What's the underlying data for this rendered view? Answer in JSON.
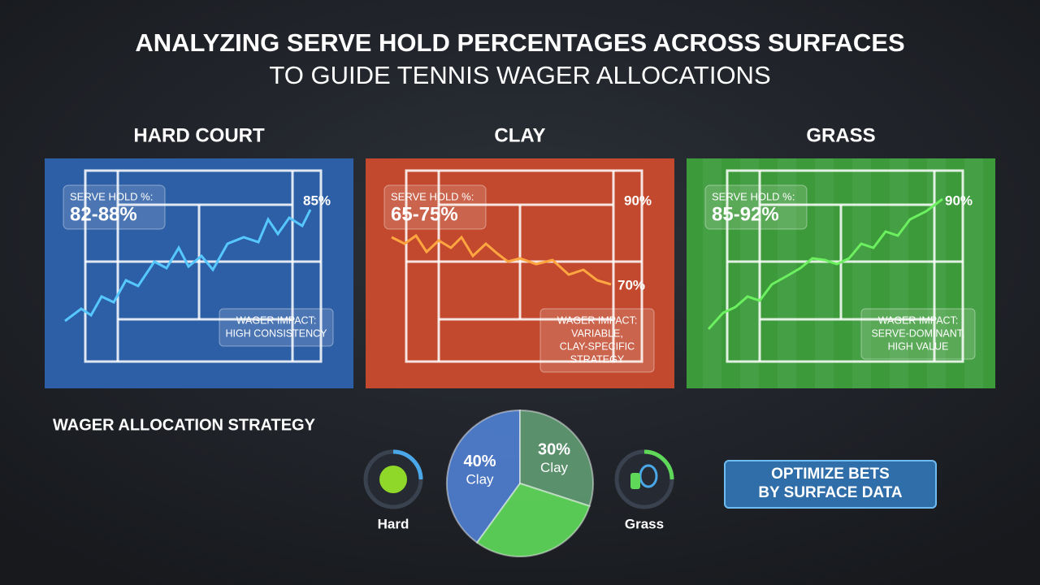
{
  "header": {
    "title_lines": [
      "ANALYZING SERVE HOLD PERCENTAGES ACROSS SURFACES",
      "TO GUIDE TENNIS WAGER ALLOCATIONS"
    ]
  },
  "panels": [
    {
      "heading": "HARD COURT",
      "hold_label": "SERVE HOLD %:",
      "hold_range": "82-88%",
      "markers": [
        "85%"
      ],
      "impact": [
        "WAGER IMPACT:",
        "HIGH CONSISTENCY"
      ]
    },
    {
      "heading": "CLAY",
      "hold_label": "SERVE HOLD %:",
      "hold_range": "65-75%",
      "markers": [
        "90%",
        "70%"
      ],
      "impact": [
        "WAGER IMPACT:",
        "VARIABLE,",
        "CLAY-SPECIFIC",
        "STRATEGY"
      ]
    },
    {
      "heading": "GRASS",
      "hold_label": "SERVE HOLD %:",
      "hold_range": "85-92%",
      "markers": [
        "90%"
      ],
      "impact": [
        "WAGER IMPACT:",
        "SERVE-DOMINANT,",
        "HIGH VALUE"
      ]
    }
  ],
  "strategy": {
    "heading": "WAGER ALLOCATION STRATEGY",
    "chart_data": {
      "type": "pie",
      "categories": [
        "Clay",
        "Clay",
        null
      ],
      "values": [
        40,
        30,
        30
      ],
      "value_labels": [
        "40%",
        "30%",
        null
      ],
      "colors": [
        "#4f7fd0",
        "#5f9a72",
        "#5fd85a"
      ]
    },
    "icons": [
      "Hard",
      "Grass"
    ],
    "button_lines": [
      "OPTIMIZE BETS",
      "BY SURFACE DATA"
    ]
  }
}
